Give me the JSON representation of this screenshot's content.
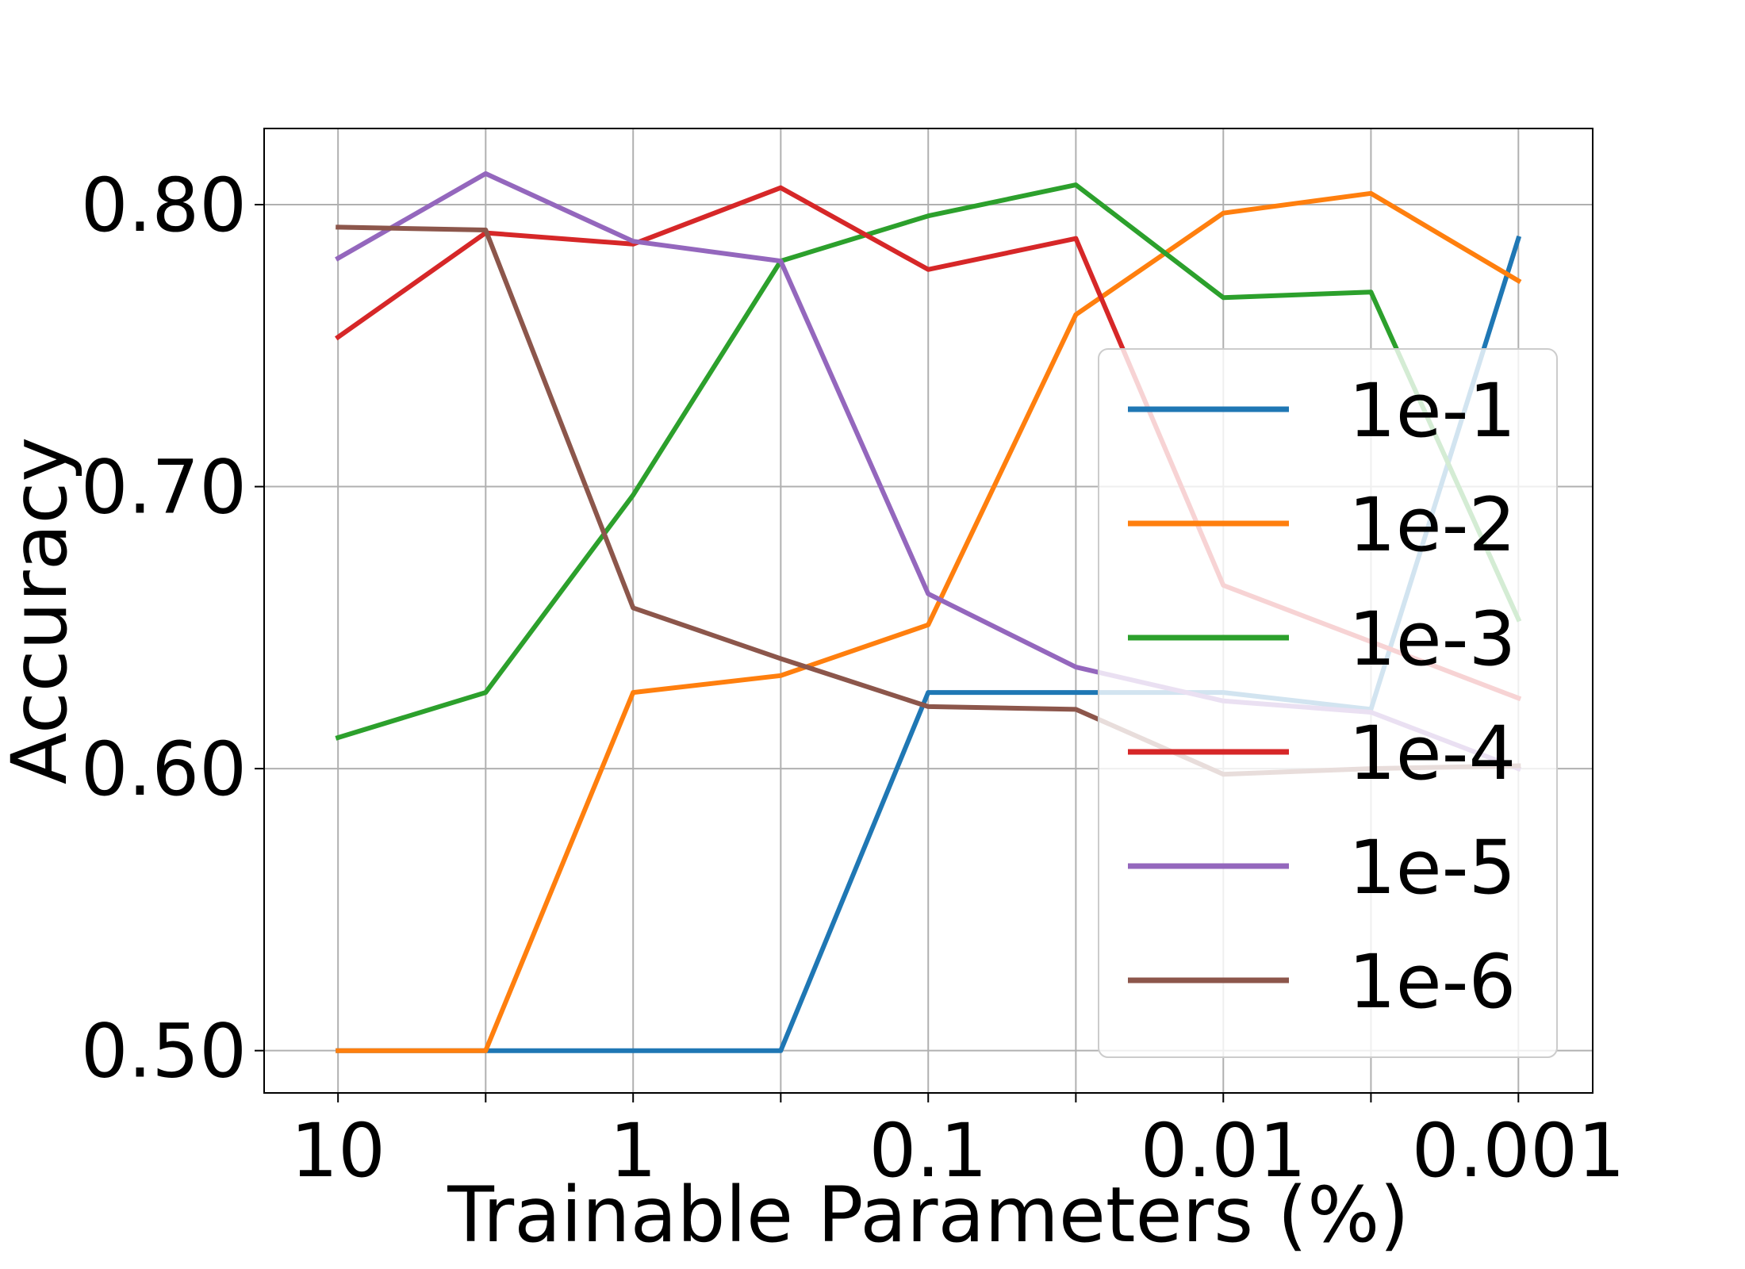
{
  "chart_data": {
    "type": "line",
    "xlabel": "Trainable Parameters (%)",
    "ylabel": "Accuracy",
    "x": [
      10,
      3.16,
      1,
      0.316,
      0.1,
      0.0316,
      0.01,
      0.00316,
      0.001
    ],
    "x_scale": "log",
    "x_reversed": true,
    "x_tick_values": [
      10,
      1,
      0.1,
      0.01,
      0.001
    ],
    "x_tick_labels": [
      "10",
      "1",
      "0.1",
      "0.01",
      "0.001"
    ],
    "y_tick_values": [
      0.5,
      0.6,
      0.7,
      0.8
    ],
    "y_tick_labels": [
      "0.50",
      "0.60",
      "0.70",
      "0.80"
    ],
    "xlim": [
      17.8,
      0.00056
    ],
    "ylim": [
      0.485,
      0.827
    ],
    "grid": true,
    "legend_position": "right",
    "series": [
      {
        "name": "1e-1",
        "color": "#1f77b4",
        "values": [
          0.5,
          0.5,
          0.5,
          0.5,
          0.627,
          0.627,
          0.627,
          0.621,
          0.788
        ]
      },
      {
        "name": "1e-2",
        "color": "#ff7f0e",
        "values": [
          0.5,
          0.5,
          0.627,
          0.633,
          0.651,
          0.761,
          0.797,
          0.804,
          0.773
        ]
      },
      {
        "name": "1e-3",
        "color": "#2ca02c",
        "values": [
          0.611,
          0.627,
          0.697,
          0.78,
          0.796,
          0.807,
          0.767,
          0.769,
          0.653
        ]
      },
      {
        "name": "1e-4",
        "color": "#d62728",
        "values": [
          0.753,
          0.79,
          0.786,
          0.806,
          0.777,
          0.788,
          0.665,
          0.645,
          0.625
        ]
      },
      {
        "name": "1e-5",
        "color": "#9467bd",
        "values": [
          0.781,
          0.811,
          0.787,
          0.78,
          0.662,
          0.636,
          0.624,
          0.62,
          0.6
        ]
      },
      {
        "name": "1e-6",
        "color": "#8c564b",
        "values": [
          0.792,
          0.791,
          0.657,
          0.639,
          0.622,
          0.621,
          0.598,
          0.6,
          0.601
        ]
      }
    ]
  }
}
